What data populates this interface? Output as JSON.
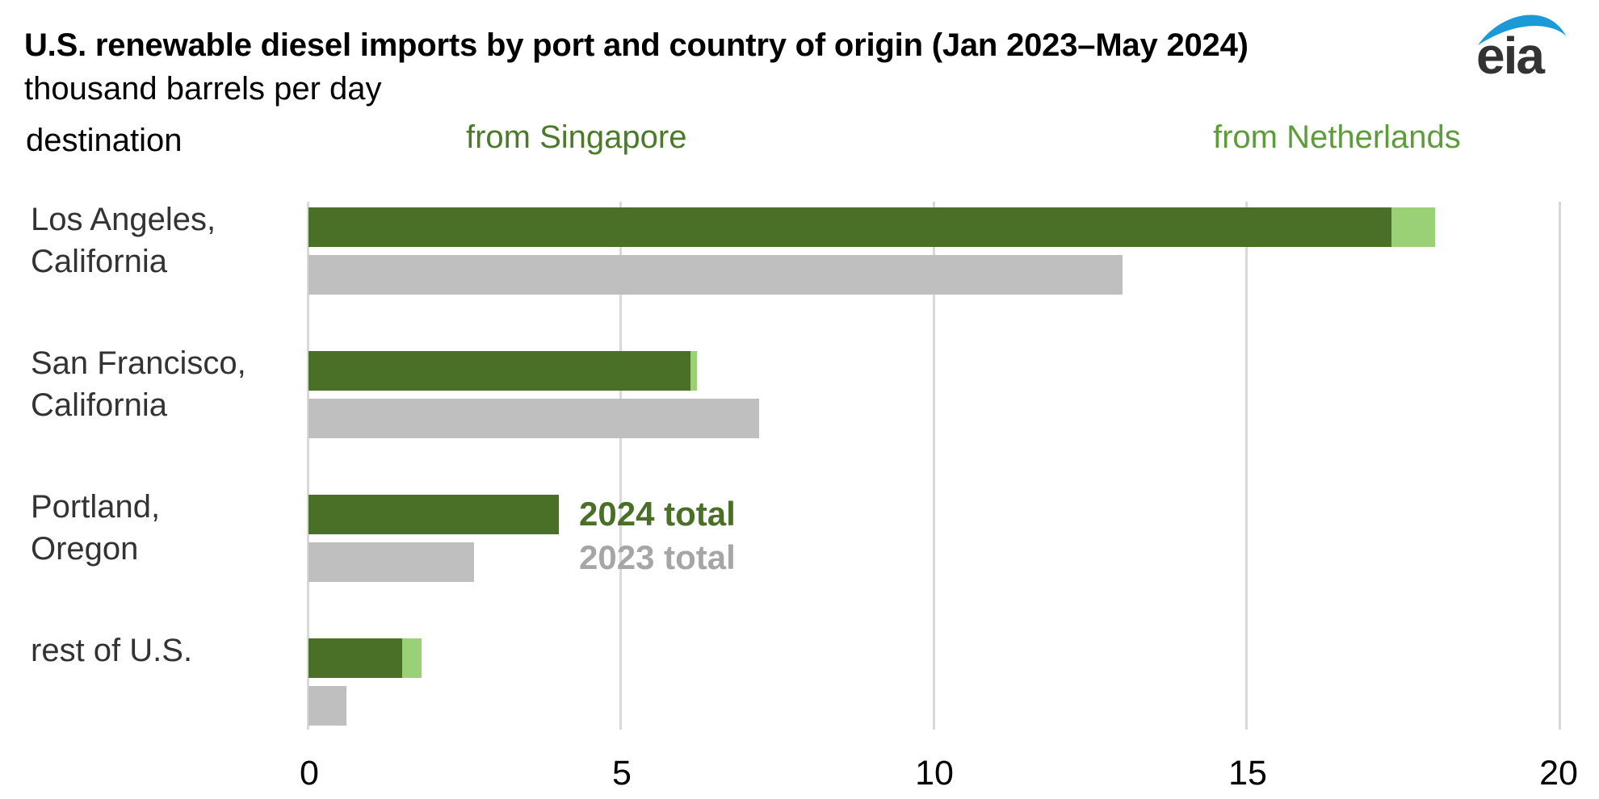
{
  "header": {
    "title": "U.S. renewable diesel imports by port and country of origin (Jan 2023–May 2024)",
    "subtitle": "thousand barrels per day",
    "logo_text": "eia",
    "logo_icon": "eia-swoosh-logo"
  },
  "column_headers": {
    "destination": "destination",
    "from_singapore": "from Singapore",
    "from_netherlands": "from Netherlands"
  },
  "legend": {
    "total_2024": "2024 total",
    "total_2023": "2023 total"
  },
  "axis": {
    "ticks": [
      "0",
      "5",
      "10",
      "15",
      "20"
    ]
  },
  "rows": [
    {
      "label_line1": "Los Angeles,",
      "label_line2": "California"
    },
    {
      "label_line1": "San Francisco,",
      "label_line2": "California"
    },
    {
      "label_line1": "Portland,",
      "label_line2": "Oregon"
    },
    {
      "label_line1": "rest of U.S.",
      "label_line2": ""
    }
  ],
  "colors": {
    "singapore_2024": "#4a7028",
    "netherlands_2024": "#9bd176",
    "total_2023": "#bfbfbf",
    "label_singapore": "#4a7a2a",
    "label_netherlands": "#5d9c3a",
    "legend_2024": "#4a7028",
    "legend_2023": "#a6a6a6",
    "gridline": "#d9d9d9",
    "logo_blue": "#1a9bd7",
    "logo_text": "#333333"
  },
  "chart_data": {
    "type": "bar",
    "orientation": "horizontal",
    "title": "U.S. renewable diesel imports by port and country of origin (Jan 2023–May 2024)",
    "subtitle": "thousand barrels per day",
    "xlabel": "thousand barrels per day",
    "ylabel": "destination",
    "categories": [
      "Los Angeles, California",
      "San Francisco, California",
      "Portland, Oregon",
      "rest of U.S."
    ],
    "series": [
      {
        "name": "2024 from Singapore",
        "stack": "2024",
        "values": [
          17.3,
          6.1,
          4.0,
          1.5
        ]
      },
      {
        "name": "2024 from Netherlands",
        "stack": "2024",
        "values": [
          0.7,
          0.1,
          0.0,
          0.3
        ]
      },
      {
        "name": "2023 total",
        "stack": "2023",
        "values": [
          13.0,
          7.2,
          2.65,
          0.6
        ]
      }
    ],
    "totals_2024": [
      18.0,
      6.2,
      4.0,
      1.8
    ],
    "xlim": [
      0,
      20
    ],
    "xticks": [
      0,
      5,
      10,
      15,
      20
    ],
    "grid": "vertical",
    "legend": [
      "from Singapore",
      "from Netherlands",
      "2024 total",
      "2023 total"
    ],
    "source_logo": "eia"
  }
}
